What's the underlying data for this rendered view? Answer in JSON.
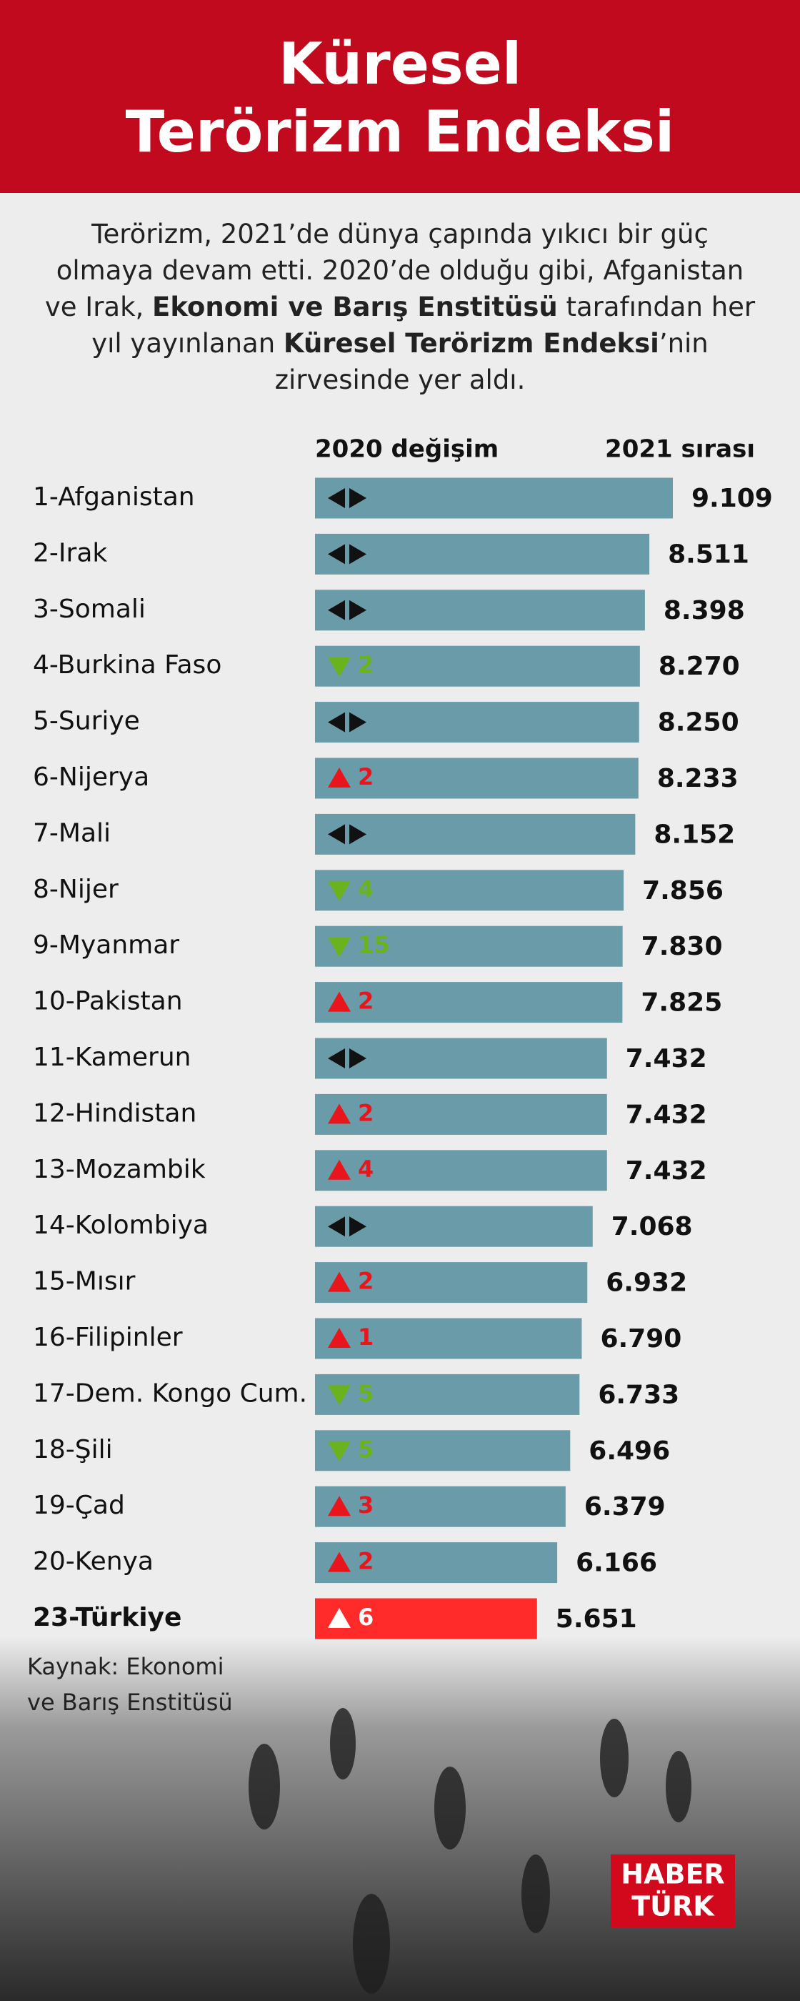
{
  "header": {
    "title_line1": "Küresel",
    "title_line2": "Terörizm Endeksi"
  },
  "intro": [
    {
      "text": "Terörizm, 2021’de dünya çapında yıkıcı bir güç olmaya devam etti. 2020’de olduğu gibi, Afganistan ve Irak, ",
      "bold": false
    },
    {
      "text": "Ekonomi ve Barış Enstitüsü",
      "bold": true
    },
    {
      "text": " tarafından her yıl yayınlanan ",
      "bold": false
    },
    {
      "text": "Küresel Terörizm Endeksi",
      "bold": true
    },
    {
      "text": "’nin zirvesinde yer aldı.",
      "bold": false
    }
  ],
  "chart_data": {
    "type": "bar",
    "orientation": "horizontal",
    "change_header": "2020 değişim",
    "value_header": "2021 sırası",
    "categories": [
      "1-Afganistan",
      "2-Irak",
      "3-Somali",
      "4-Burkina Faso",
      "5-Suriye",
      "6-Nijerya",
      "7-Mali",
      "8-Nijer",
      "9-Myanmar",
      "10-Pakistan",
      "11-Kamerun",
      "12-Hindistan",
      "13-Mozambik",
      "14-Kolombiya",
      "15-Mısır",
      "16-Filipinler",
      "17-Dem. Kongo Cum.",
      "18-Şili",
      "19-Çad",
      "20-Kenya",
      "23-Türkiye"
    ],
    "values": [
      9.109,
      8.511,
      8.398,
      8.27,
      8.25,
      8.233,
      8.152,
      7.856,
      7.83,
      7.825,
      7.432,
      7.432,
      7.432,
      7.068,
      6.932,
      6.79,
      6.733,
      6.496,
      6.379,
      6.166,
      5.651
    ],
    "value_labels": [
      "9.109",
      "8.511",
      "8.398",
      "8.270",
      "8.250",
      "8.233",
      "8.152",
      "7.856",
      "7.830",
      "7.825",
      "7.432",
      "7.432",
      "7.432",
      "7.068",
      "6.932",
      "6.790",
      "6.733",
      "6.496",
      "6.379",
      "6.166",
      "5.651"
    ],
    "change_direction": [
      "same",
      "same",
      "same",
      "down",
      "same",
      "up",
      "same",
      "down",
      "down",
      "up",
      "same",
      "up",
      "up",
      "same",
      "up",
      "up",
      "down",
      "down",
      "up",
      "up",
      "up"
    ],
    "change_values": [
      null,
      null,
      null,
      2,
      null,
      2,
      null,
      4,
      15,
      2,
      null,
      2,
      4,
      null,
      2,
      1,
      5,
      5,
      3,
      2,
      6
    ],
    "colors": [
      "#6a9ba8",
      "#6a9ba8",
      "#6a9ba8",
      "#6a9ba8",
      "#6a9ba8",
      "#6a9ba8",
      "#6a9ba8",
      "#6a9ba8",
      "#6a9ba8",
      "#6a9ba8",
      "#6a9ba8",
      "#6a9ba8",
      "#6a9ba8",
      "#6a9ba8",
      "#6a9ba8",
      "#6a9ba8",
      "#6a9ba8",
      "#6a9ba8",
      "#6a9ba8",
      "#6a9ba8",
      "#ff2a2a"
    ],
    "xlim": [
      0,
      10
    ]
  },
  "source": {
    "line1": "Kaynak:  Ekonomi",
    "line2": "ve Barış Enstitüsü"
  },
  "logo": {
    "line1": "HABER",
    "line2": "TÜRK"
  }
}
